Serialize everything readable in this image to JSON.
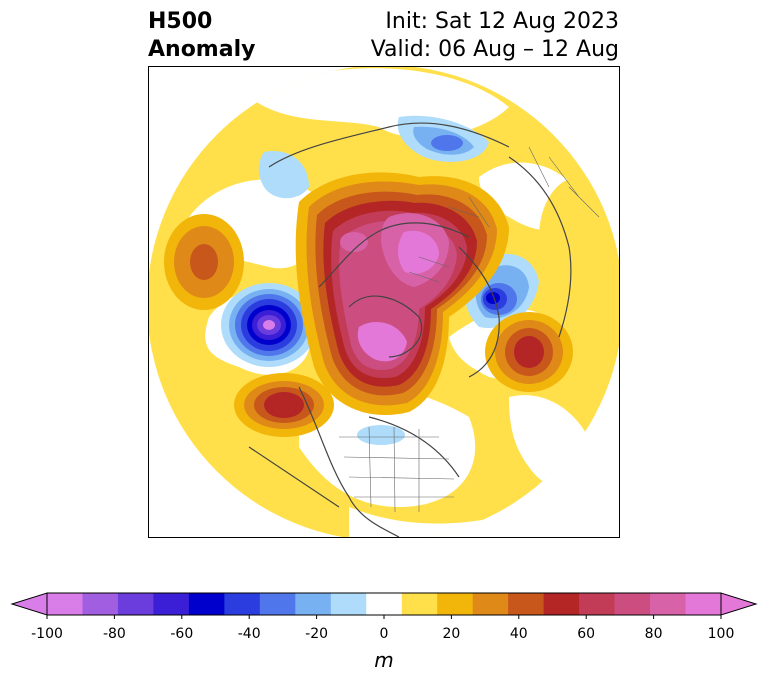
{
  "title": {
    "left_line1": "H500",
    "left_line2": "Anomaly",
    "right_line1": "Init: Sat 12 Aug 2023",
    "right_line2": "Valid: 06 Aug – 12 Aug"
  },
  "colorbar": {
    "unit": "m",
    "ticks": [
      "-100",
      "-80",
      "-60",
      "-40",
      "-20",
      "0",
      "20",
      "40",
      "60",
      "80",
      "100"
    ],
    "extend": "both",
    "levels": [
      {
        "range": "below -100",
        "color": "#d97ee8"
      },
      {
        "range": "-100 to -90",
        "color": "#d97ee8"
      },
      {
        "range": "-90 to -80",
        "color": "#a25ee0"
      },
      {
        "range": "-80 to -70",
        "color": "#6a3ddc"
      },
      {
        "range": "-70 to -60",
        "color": "#3a1fd6"
      },
      {
        "range": "-60 to -50",
        "color": "#0000cd"
      },
      {
        "range": "-50 to -40",
        "color": "#2b3ddf"
      },
      {
        "range": "-40 to -30",
        "color": "#4f76ea"
      },
      {
        "range": "-30 to -20",
        "color": "#78b1f2"
      },
      {
        "range": "-20 to -10",
        "color": "#aedcfa"
      },
      {
        "range": "-10 to 10",
        "color": "#ffffff"
      },
      {
        "range": "10 to 20",
        "color": "#ffe04a"
      },
      {
        "range": "20 to 30",
        "color": "#f2b60a"
      },
      {
        "range": "30 to 40",
        "color": "#df8a18"
      },
      {
        "range": "40 to 50",
        "color": "#c8571c"
      },
      {
        "range": "50 to 60",
        "color": "#b42626"
      },
      {
        "range": "60 to 70",
        "color": "#c23c58"
      },
      {
        "range": "70 to 80",
        "color": "#cc4e80"
      },
      {
        "range": "80 to 90",
        "color": "#d762a8"
      },
      {
        "range": "90 to 100",
        "color": "#e478d8"
      },
      {
        "range": "above 100",
        "color": "#e478d8"
      }
    ]
  },
  "map": {
    "projection": "polar stereographic",
    "features": [
      {
        "name": "positive-anomaly-arctic-greenland",
        "sign": "positive",
        "peak": "90-100"
      },
      {
        "name": "positive-anomaly-hudson-bay",
        "sign": "positive",
        "peak": "90-100"
      },
      {
        "name": "negative-anomaly-eurasia-west",
        "sign": "negative",
        "peak": "-60 to -50"
      },
      {
        "name": "negative-anomaly-bering-north-pacific",
        "sign": "negative",
        "peak": "-100"
      },
      {
        "name": "negative-anomaly-siberia",
        "sign": "negative",
        "peak": "-40 to -30"
      },
      {
        "name": "positive-anomaly-pacific",
        "sign": "positive",
        "peak": "40-50"
      },
      {
        "name": "positive-anomaly-north-atlantic",
        "sign": "positive",
        "peak": "50-60"
      },
      {
        "name": "positive-anomaly-central-asia",
        "sign": "positive",
        "peak": "40-50"
      },
      {
        "name": "positive-anomaly-east-pacific",
        "sign": "positive",
        "peak": "50-60"
      }
    ]
  }
}
